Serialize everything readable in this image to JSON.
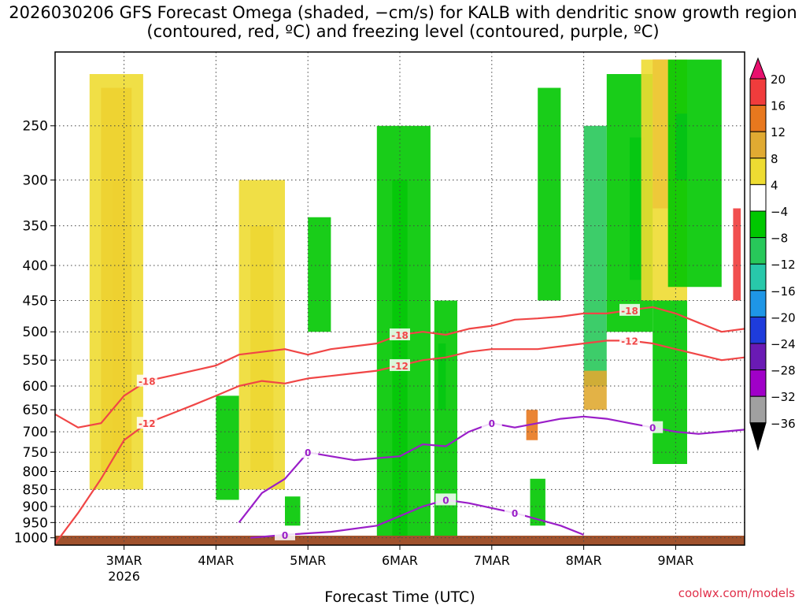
{
  "chart_data": {
    "type": "heatmap",
    "title": "2026030206 GFS Forecast Omega (shaded, −cm/s) for KALB with dendritic snow growth region (contoured, red, ºC) and freezing level (contoured, purple, ºC)",
    "xlabel": "Forecast Time (UTC)",
    "ylabel": "",
    "credit": "coolwx.com/models",
    "x_range": [
      "2026-03-02T06:00Z",
      "2026-03-09T18:00Z"
    ],
    "y_range_hPa": [
      1025,
      195
    ],
    "y_scale": "log",
    "x_ticks": [
      {
        "x": "2026-03-03T00:00Z",
        "label": "3MAR",
        "sublabel": "2026"
      },
      {
        "x": "2026-03-04T00:00Z",
        "label": "4MAR",
        "sublabel": ""
      },
      {
        "x": "2026-03-05T00:00Z",
        "label": "5MAR",
        "sublabel": ""
      },
      {
        "x": "2026-03-06T00:00Z",
        "label": "6MAR",
        "sublabel": ""
      },
      {
        "x": "2026-03-07T00:00Z",
        "label": "7MAR",
        "sublabel": ""
      },
      {
        "x": "2026-03-08T00:00Z",
        "label": "8MAR",
        "sublabel": ""
      },
      {
        "x": "2026-03-09T00:00Z",
        "label": "9MAR",
        "sublabel": ""
      }
    ],
    "y_ticks": [
      250,
      300,
      350,
      400,
      450,
      500,
      550,
      600,
      650,
      700,
      750,
      800,
      850,
      900,
      950,
      1000
    ],
    "grid": true,
    "colorbar": {
      "labels": [
        "20",
        "16",
        "12",
        "8",
        "4",
        "−4",
        "−8",
        "−12",
        "−16",
        "−20",
        "−24",
        "−28",
        "−32",
        "−36"
      ],
      "colors": [
        "#e8106e",
        "#f03c3c",
        "#e8781e",
        "#e0aa32",
        "#eedc32",
        "#ffffff",
        "#00c800",
        "#28c85a",
        "#28c8aa",
        "#1e96e6",
        "#1e3cdc",
        "#6a1ab4",
        "#a000c8",
        "#a0a0a0",
        "#000000"
      ],
      "extend": "both"
    },
    "omega_areas": [
      {
        "level": "16",
        "points": [
          [
            "2026-03-02T21:00Z",
            300
          ],
          [
            "2026-03-03T00:00Z",
            300
          ],
          [
            "2026-03-03T00:00Z",
            750
          ],
          [
            "2026-03-02T21:00Z",
            750
          ]
        ]
      },
      {
        "level": "12",
        "points": [
          [
            "2026-03-02T18:00Z",
            220
          ],
          [
            "2026-03-03T02:00Z",
            220
          ],
          [
            "2026-03-03T02:00Z",
            800
          ],
          [
            "2026-03-02T18:00Z",
            800
          ]
        ]
      },
      {
        "level": "4",
        "points": [
          [
            "2026-03-02T15:00Z",
            210
          ],
          [
            "2026-03-03T05:00Z",
            210
          ],
          [
            "2026-03-03T05:00Z",
            850
          ],
          [
            "2026-03-02T15:00Z",
            850
          ]
        ]
      },
      {
        "level": "8",
        "points": [
          [
            "2026-03-04T09:00Z",
            350
          ],
          [
            "2026-03-04T15:00Z",
            350
          ],
          [
            "2026-03-04T15:00Z",
            800
          ],
          [
            "2026-03-04T09:00Z",
            800
          ]
        ]
      },
      {
        "level": "4",
        "points": [
          [
            "2026-03-04T06:00Z",
            300
          ],
          [
            "2026-03-04T18:00Z",
            300
          ],
          [
            "2026-03-04T18:00Z",
            850
          ],
          [
            "2026-03-04T06:00Z",
            850
          ]
        ]
      },
      {
        "level": "-12",
        "points": [
          [
            "2026-03-05T22:00Z",
            300
          ],
          [
            "2026-03-06T02:00Z",
            300
          ],
          [
            "2026-03-06T02:00Z",
            1000
          ],
          [
            "2026-03-05T22:00Z",
            1000
          ]
        ]
      },
      {
        "level": "-8",
        "points": [
          [
            "2026-03-05T18:00Z",
            250
          ],
          [
            "2026-03-06T08:00Z",
            250
          ],
          [
            "2026-03-06T08:00Z",
            1000
          ],
          [
            "2026-03-05T18:00Z",
            1000
          ]
        ]
      },
      {
        "level": "-16",
        "points": [
          [
            "2026-03-06T10:00Z",
            520
          ],
          [
            "2026-03-06T12:00Z",
            520
          ],
          [
            "2026-03-06T12:00Z",
            650
          ],
          [
            "2026-03-06T10:00Z",
            650
          ]
        ]
      },
      {
        "level": "-8",
        "points": [
          [
            "2026-03-06T09:00Z",
            450
          ],
          [
            "2026-03-06T15:00Z",
            450
          ],
          [
            "2026-03-06T15:00Z",
            1000
          ],
          [
            "2026-03-06T09:00Z",
            1000
          ]
        ]
      },
      {
        "level": "-8",
        "points": [
          [
            "2026-03-04T00:00Z",
            620
          ],
          [
            "2026-03-04T06:00Z",
            620
          ],
          [
            "2026-03-04T06:00Z",
            880
          ],
          [
            "2026-03-04T00:00Z",
            880
          ]
        ]
      },
      {
        "level": "-8",
        "points": [
          [
            "2026-03-05T00:00Z",
            340
          ],
          [
            "2026-03-05T06:00Z",
            340
          ],
          [
            "2026-03-05T06:00Z",
            500
          ],
          [
            "2026-03-05T00:00Z",
            500
          ]
        ]
      },
      {
        "level": "-8",
        "points": [
          [
            "2026-03-07T12:00Z",
            220
          ],
          [
            "2026-03-07T18:00Z",
            220
          ],
          [
            "2026-03-07T18:00Z",
            450
          ],
          [
            "2026-03-07T12:00Z",
            450
          ]
        ]
      },
      {
        "level": "-12",
        "points": [
          [
            "2026-03-08T00:00Z",
            250
          ],
          [
            "2026-03-08T06:00Z",
            250
          ],
          [
            "2026-03-08T06:00Z",
            600
          ],
          [
            "2026-03-08T00:00Z",
            600
          ]
        ]
      },
      {
        "level": "8",
        "points": [
          [
            "2026-03-08T00:00Z",
            570
          ],
          [
            "2026-03-08T06:00Z",
            570
          ],
          [
            "2026-03-08T06:00Z",
            650
          ],
          [
            "2026-03-08T00:00Z",
            650
          ]
        ]
      },
      {
        "level": "-16",
        "points": [
          [
            "2026-03-08T12:00Z",
            260
          ],
          [
            "2026-03-08T16:00Z",
            260
          ],
          [
            "2026-03-08T16:00Z",
            420
          ],
          [
            "2026-03-08T12:00Z",
            420
          ]
        ]
      },
      {
        "level": "-8",
        "points": [
          [
            "2026-03-08T06:00Z",
            210
          ],
          [
            "2026-03-08T18:00Z",
            210
          ],
          [
            "2026-03-08T18:00Z",
            500
          ],
          [
            "2026-03-08T06:00Z",
            500
          ]
        ]
      },
      {
        "level": "20",
        "points": [
          [
            "2026-03-08T18:00Z",
            200
          ],
          [
            "2026-03-08T22:00Z",
            200
          ],
          [
            "2026-03-08T22:00Z",
            330
          ],
          [
            "2026-03-08T18:00Z",
            330
          ]
        ]
      },
      {
        "level": "4",
        "points": [
          [
            "2026-03-08T15:00Z",
            200
          ],
          [
            "2026-03-09T03:00Z",
            200
          ],
          [
            "2026-03-09T03:00Z",
            450
          ],
          [
            "2026-03-08T15:00Z",
            450
          ]
        ]
      },
      {
        "level": "-20",
        "points": [
          [
            "2026-03-09T00:00Z",
            240
          ],
          [
            "2026-03-09T03:00Z",
            240
          ],
          [
            "2026-03-09T03:00Z",
            300
          ],
          [
            "2026-03-09T00:00Z",
            300
          ]
        ]
      },
      {
        "level": "-8",
        "points": [
          [
            "2026-03-08T22:00Z",
            200
          ],
          [
            "2026-03-09T12:00Z",
            200
          ],
          [
            "2026-03-09T12:00Z",
            430
          ],
          [
            "2026-03-08T22:00Z",
            430
          ]
        ]
      },
      {
        "level": "16",
        "points": [
          [
            "2026-03-09T15:00Z",
            330
          ],
          [
            "2026-03-09T17:00Z",
            330
          ],
          [
            "2026-03-09T17:00Z",
            450
          ],
          [
            "2026-03-09T15:00Z",
            450
          ]
        ]
      },
      {
        "level": "-8",
        "points": [
          [
            "2026-03-08T18:00Z",
            450
          ],
          [
            "2026-03-09T03:00Z",
            450
          ],
          [
            "2026-03-09T03:00Z",
            780
          ],
          [
            "2026-03-08T18:00Z",
            780
          ]
        ]
      },
      {
        "level": "12",
        "points": [
          [
            "2026-03-07T09:00Z",
            650
          ],
          [
            "2026-03-07T12:00Z",
            650
          ],
          [
            "2026-03-07T12:00Z",
            720
          ],
          [
            "2026-03-07T09:00Z",
            720
          ]
        ]
      },
      {
        "level": "-8",
        "points": [
          [
            "2026-03-07T10:00Z",
            820
          ],
          [
            "2026-03-07T14:00Z",
            820
          ],
          [
            "2026-03-07T14:00Z",
            960
          ],
          [
            "2026-03-07T10:00Z",
            960
          ]
        ]
      },
      {
        "level": "-8",
        "points": [
          [
            "2026-03-04T18:00Z",
            870
          ],
          [
            "2026-03-04T22:00Z",
            870
          ],
          [
            "2026-03-04T22:00Z",
            960
          ],
          [
            "2026-03-04T18:00Z",
            960
          ]
        ]
      }
    ],
    "contours": [
      {
        "label": "-18",
        "color": "#f04646",
        "points": [
          [
            "2026-03-02T06:00Z",
            660
          ],
          [
            "2026-03-02T12:00Z",
            690
          ],
          [
            "2026-03-02T18:00Z",
            680
          ],
          [
            "2026-03-03T00:00Z",
            620
          ],
          [
            "2026-03-03T06:00Z",
            590
          ],
          [
            "2026-03-03T12:00Z",
            580
          ],
          [
            "2026-03-03T18:00Z",
            570
          ],
          [
            "2026-03-04T00:00Z",
            560
          ],
          [
            "2026-03-04T06:00Z",
            540
          ],
          [
            "2026-03-04T12:00Z",
            535
          ],
          [
            "2026-03-04T18:00Z",
            530
          ],
          [
            "2026-03-05T00:00Z",
            540
          ],
          [
            "2026-03-05T06:00Z",
            530
          ],
          [
            "2026-03-05T12:00Z",
            525
          ],
          [
            "2026-03-05T18:00Z",
            520
          ],
          [
            "2026-03-06T00:00Z",
            505
          ],
          [
            "2026-03-06T06:00Z",
            500
          ],
          [
            "2026-03-06T12:00Z",
            505
          ],
          [
            "2026-03-06T18:00Z",
            495
          ],
          [
            "2026-03-07T00:00Z",
            490
          ],
          [
            "2026-03-07T06:00Z",
            480
          ],
          [
            "2026-03-07T12:00Z",
            478
          ],
          [
            "2026-03-07T18:00Z",
            475
          ],
          [
            "2026-03-08T00:00Z",
            470
          ],
          [
            "2026-03-08T06:00Z",
            470
          ],
          [
            "2026-03-08T12:00Z",
            465
          ],
          [
            "2026-03-08T18:00Z",
            460
          ],
          [
            "2026-03-09T00:00Z",
            470
          ],
          [
            "2026-03-09T06:00Z",
            485
          ],
          [
            "2026-03-09T12:00Z",
            500
          ],
          [
            "2026-03-09T18:00Z",
            495
          ]
        ]
      },
      {
        "label": "-12",
        "color": "#f04646",
        "points": [
          [
            "2026-03-02T06:00Z",
            1020
          ],
          [
            "2026-03-02T12:00Z",
            920
          ],
          [
            "2026-03-02T18:00Z",
            820
          ],
          [
            "2026-03-03T00:00Z",
            720
          ],
          [
            "2026-03-03T06:00Z",
            680
          ],
          [
            "2026-03-03T12:00Z",
            660
          ],
          [
            "2026-03-03T18:00Z",
            640
          ],
          [
            "2026-03-04T00:00Z",
            620
          ],
          [
            "2026-03-04T06:00Z",
            600
          ],
          [
            "2026-03-04T12:00Z",
            590
          ],
          [
            "2026-03-04T18:00Z",
            595
          ],
          [
            "2026-03-05T00:00Z",
            585
          ],
          [
            "2026-03-05T06:00Z",
            580
          ],
          [
            "2026-03-05T12:00Z",
            575
          ],
          [
            "2026-03-05T18:00Z",
            570
          ],
          [
            "2026-03-06T00:00Z",
            560
          ],
          [
            "2026-03-06T06:00Z",
            550
          ],
          [
            "2026-03-06T12:00Z",
            545
          ],
          [
            "2026-03-06T18:00Z",
            535
          ],
          [
            "2026-03-07T00:00Z",
            530
          ],
          [
            "2026-03-07T06:00Z",
            530
          ],
          [
            "2026-03-07T12:00Z",
            530
          ],
          [
            "2026-03-07T18:00Z",
            525
          ],
          [
            "2026-03-08T00:00Z",
            520
          ],
          [
            "2026-03-08T06:00Z",
            515
          ],
          [
            "2026-03-08T12:00Z",
            515
          ],
          [
            "2026-03-08T18:00Z",
            520
          ],
          [
            "2026-03-09T00:00Z",
            530
          ],
          [
            "2026-03-09T06:00Z",
            540
          ],
          [
            "2026-03-09T12:00Z",
            550
          ],
          [
            "2026-03-09T18:00Z",
            545
          ]
        ]
      },
      {
        "label": "0",
        "color": "#9a1ec8",
        "points": [
          [
            "2026-03-04T06:00Z",
            950
          ],
          [
            "2026-03-04T12:00Z",
            860
          ],
          [
            "2026-03-04T18:00Z",
            820
          ],
          [
            "2026-03-05T00:00Z",
            750
          ],
          [
            "2026-03-05T06:00Z",
            760
          ],
          [
            "2026-03-05T12:00Z",
            770
          ],
          [
            "2026-03-05T18:00Z",
            765
          ],
          [
            "2026-03-06T00:00Z",
            760
          ],
          [
            "2026-03-06T06:00Z",
            730
          ],
          [
            "2026-03-06T12:00Z",
            735
          ],
          [
            "2026-03-06T18:00Z",
            700
          ],
          [
            "2026-03-07T00:00Z",
            680
          ],
          [
            "2026-03-07T06:00Z",
            690
          ],
          [
            "2026-03-07T12:00Z",
            680
          ],
          [
            "2026-03-07T18:00Z",
            670
          ],
          [
            "2026-03-08T00:00Z",
            665
          ],
          [
            "2026-03-08T06:00Z",
            670
          ],
          [
            "2026-03-08T12:00Z",
            680
          ],
          [
            "2026-03-08T18:00Z",
            690
          ],
          [
            "2026-03-09T00:00Z",
            700
          ],
          [
            "2026-03-09T06:00Z",
            705
          ],
          [
            "2026-03-09T12:00Z",
            700
          ],
          [
            "2026-03-09T18:00Z",
            695
          ]
        ]
      },
      {
        "label": "0",
        "color": "#9a1ec8",
        "points": [
          [
            "2026-03-04T09:00Z",
            1000
          ],
          [
            "2026-03-04T18:00Z",
            990
          ],
          [
            "2026-03-05T06:00Z",
            980
          ],
          [
            "2026-03-05T18:00Z",
            960
          ],
          [
            "2026-03-06T06:00Z",
            900
          ],
          [
            "2026-03-06T12:00Z",
            880
          ],
          [
            "2026-03-06T18:00Z",
            890
          ],
          [
            "2026-03-07T06:00Z",
            920
          ],
          [
            "2026-03-07T18:00Z",
            960
          ],
          [
            "2026-03-08T00:00Z",
            990
          ]
        ]
      }
    ],
    "annotations": [],
    "ground": {
      "label": "",
      "color": "#a0522d"
    }
  }
}
